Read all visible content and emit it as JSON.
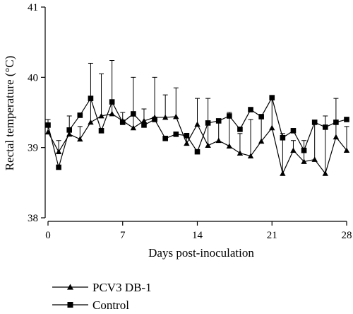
{
  "chart_data": {
    "type": "line",
    "xlabel": "Days post-inoculation",
    "ylabel": "Rectal temperature (°C)",
    "xlim": [
      0,
      28
    ],
    "ylim": [
      38,
      41
    ],
    "xticks": [
      0,
      7,
      14,
      21,
      28
    ],
    "yticks": [
      38,
      39,
      40,
      41
    ],
    "x": [
      0,
      1,
      2,
      3,
      4,
      5,
      6,
      7,
      8,
      9,
      10,
      11,
      12,
      13,
      14,
      15,
      16,
      17,
      18,
      19,
      20,
      21,
      22,
      23,
      24,
      25,
      26,
      27,
      28
    ],
    "legend_position": "bottom-left",
    "error_bars": "upper only",
    "series": [
      {
        "name": "PCV3 DB-1",
        "marker": "triangle",
        "values": [
          39.22,
          38.94,
          39.19,
          39.12,
          39.36,
          39.45,
          39.48,
          39.38,
          39.28,
          39.38,
          39.43,
          39.43,
          39.44,
          39.06,
          39.33,
          39.03,
          39.1,
          39.02,
          38.92,
          38.88,
          39.09,
          39.28,
          38.63,
          38.96,
          38.8,
          38.83,
          38.63,
          39.15,
          38.96
        ],
        "upper": [
          39.4,
          39.1,
          39.45,
          39.3,
          40.2,
          40.05,
          40.24,
          39.5,
          40.0,
          39.55,
          40.0,
          39.75,
          39.85,
          39.2,
          39.7,
          39.7,
          39.35,
          39.5,
          39.2,
          39.4,
          39.45,
          39.7,
          39.2,
          39.1,
          39.1,
          39.35,
          39.45,
          39.7,
          39.3
        ]
      },
      {
        "name": "Control",
        "marker": "square",
        "values": [
          39.32,
          38.72,
          39.25,
          39.46,
          39.7,
          39.24,
          39.65,
          39.36,
          39.48,
          39.32,
          39.4,
          39.13,
          39.19,
          39.17,
          38.94,
          39.35,
          39.38,
          39.45,
          39.26,
          39.54,
          39.44,
          39.71,
          39.14,
          39.24,
          38.96,
          39.36,
          39.29,
          39.36,
          39.4
        ]
      }
    ]
  }
}
